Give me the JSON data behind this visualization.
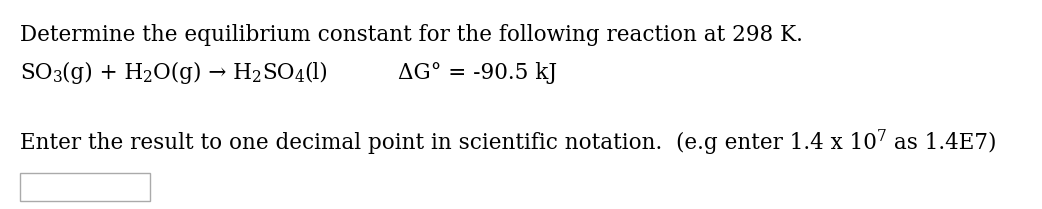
{
  "background_color": "#ffffff",
  "line1": "Determine the equilibrium constant for the following reaction at 298 K.",
  "line2_delta": "ΔG° = -90.5 kJ",
  "line3_prefix": "Enter the result to one decimal point in scientific notation.  (e.g enter 1.4 x 10",
  "line3_exp": "7",
  "line3_suffix": " as 1.4E7)",
  "font_size": 15.5,
  "font_family": "DejaVu Serif",
  "text_color": "#000000",
  "fig_width": 10.42,
  "fig_height": 2.09,
  "dpi": 100
}
